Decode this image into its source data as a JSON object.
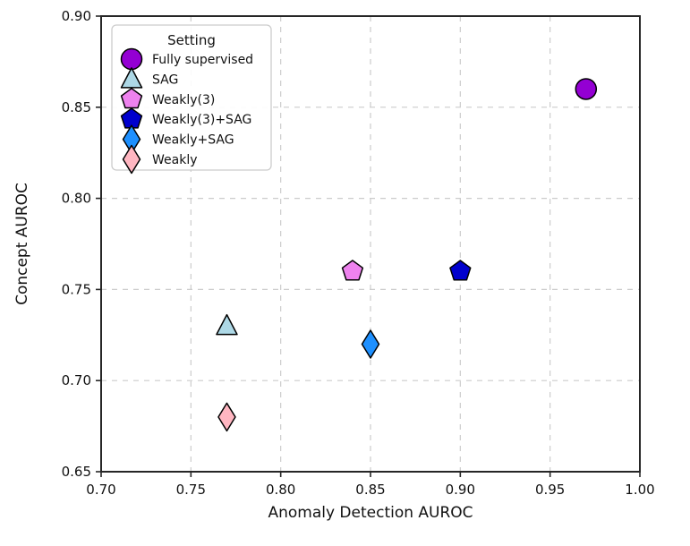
{
  "chart_data": {
    "type": "scatter",
    "title": "",
    "xlabel": "Anomaly Detection AUROC",
    "ylabel": "Concept AUROC",
    "xlim": [
      0.7,
      1.0
    ],
    "ylim": [
      0.65,
      0.9
    ],
    "xticks": [
      0.7,
      0.75,
      0.8,
      0.85,
      0.9,
      0.95,
      1.0
    ],
    "xtick_labels": [
      "0.70",
      "0.75",
      "0.80",
      "0.85",
      "0.90",
      "0.95",
      "1.00"
    ],
    "yticks": [
      0.65,
      0.7,
      0.75,
      0.8,
      0.85,
      0.9
    ],
    "ytick_labels": [
      "0.65",
      "0.70",
      "0.75",
      "0.80",
      "0.85",
      "0.90"
    ],
    "grid": true,
    "grid_style": "dashed",
    "legend": {
      "title": "Setting",
      "position": "upper-left"
    },
    "series": [
      {
        "name": "Fully supervised",
        "marker": "circle",
        "color": "#9400D3",
        "points": [
          [
            0.97,
            0.86
          ]
        ]
      },
      {
        "name": "SAG",
        "marker": "triangle-up",
        "color": "#ADD8E6",
        "points": [
          [
            0.77,
            0.73
          ]
        ]
      },
      {
        "name": "Weakly(3)",
        "marker": "pentagon",
        "color": "#EE82EE",
        "points": [
          [
            0.84,
            0.76
          ]
        ]
      },
      {
        "name": "Weakly(3)+SAG",
        "marker": "pentagon",
        "color": "#0000CD",
        "points": [
          [
            0.9,
            0.76
          ]
        ]
      },
      {
        "name": "Weakly+SAG",
        "marker": "diamond-thin",
        "color": "#1E90FF",
        "points": [
          [
            0.85,
            0.72
          ]
        ]
      },
      {
        "name": "Weakly",
        "marker": "diamond-thin",
        "color": "#FFB6C1",
        "points": [
          [
            0.77,
            0.68
          ]
        ]
      }
    ],
    "colors": {
      "marker_edge": "#000000",
      "grid": "#cccccc",
      "spine": "#262626",
      "legend_border": "#cccccc",
      "legend_background": "#ffffff",
      "background": "#ffffff"
    }
  }
}
